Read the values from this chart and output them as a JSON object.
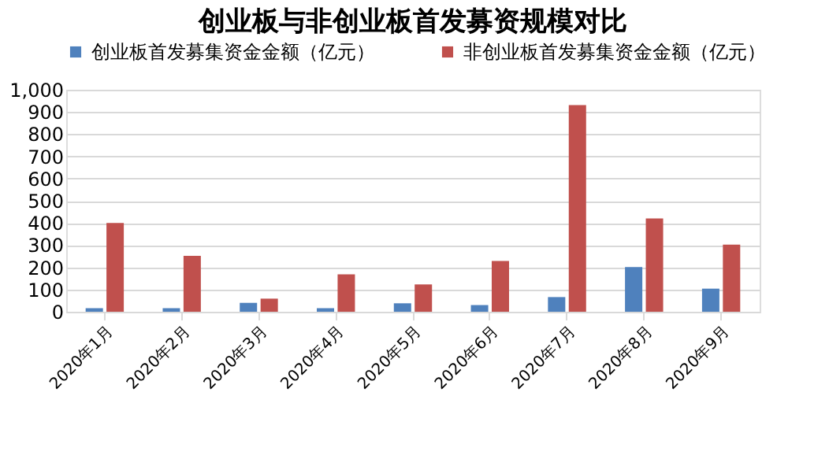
{
  "chart_data": {
    "type": "bar",
    "title": "创业板与非创业板首发募资规模对比",
    "categories": [
      "2020年1月",
      "2020年2月",
      "2020年3月",
      "2020年4月",
      "2020年5月",
      "2020年6月",
      "2020年7月",
      "2020年8月",
      "2020年9月"
    ],
    "series": [
      {
        "name": "创业板首发募集资金金额（亿元）",
        "color": "#4f81bd",
        "values": [
          16,
          16,
          40,
          16,
          38,
          30,
          66,
          201,
          104
        ]
      },
      {
        "name": "非创业板首发募集资金金额（亿元）",
        "color": "#c0504d",
        "values": [
          400,
          252,
          59,
          168,
          123,
          229,
          931,
          420,
          302
        ]
      }
    ],
    "ylim": [
      0,
      1000
    ],
    "yticks": [
      0,
      {
        "value": 100,
        "label": "100"
      },
      200,
      300,
      400,
      500,
      600,
      700,
      800,
      900,
      {
        "value": 1000,
        "label": "1,000"
      }
    ],
    "grid": "y",
    "legend": "top"
  }
}
